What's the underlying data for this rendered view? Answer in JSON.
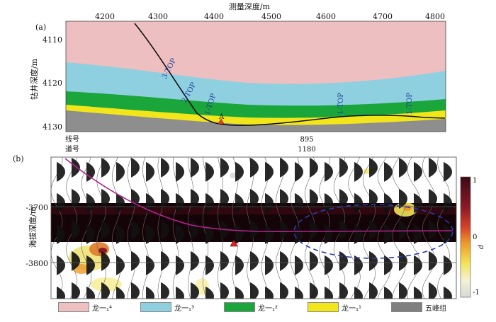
{
  "panel_a": {
    "label": "(a)",
    "top_axis_title": "测量深度/m",
    "top_ticks": [
      "4200",
      "4300",
      "4400",
      "4500",
      "4600",
      "4700",
      "4800"
    ],
    "left_axis_title": "钻井深度/m",
    "left_ticks": [
      "4110",
      "4120",
      "4130"
    ],
    "marker_label": "A",
    "curve_labels": [
      "3-TOP",
      "2-TOP",
      "1-TOP",
      "1-TOP",
      "1-TOP"
    ],
    "line_label": "线号",
    "trace_label": "道号",
    "line_number": "895",
    "trace_number": "1180",
    "layer_colors": {
      "l4": "#edbfc0",
      "l3": "#8fd0e0",
      "l2": "#1aa63a",
      "l1": "#f2e61a",
      "base": "#8e8e8e"
    }
  },
  "panel_b": {
    "label": "(b)",
    "left_axis_title": "海拔深度/m",
    "left_ticks": [
      "-3700",
      "-3800"
    ],
    "colorbar": {
      "max_label": "1",
      "mid_label": "0",
      "min_label": "-1",
      "title": "d"
    }
  },
  "legend": [
    {
      "label": "龙一₁⁴",
      "color": "#edbfc0"
    },
    {
      "label": "龙一₁³",
      "color": "#8fd0e0"
    },
    {
      "label": "龙一₁²",
      "color": "#1aa63a"
    },
    {
      "label": "龙一₁¹",
      "color": "#f2e61a"
    },
    {
      "label": "五峰组",
      "color": "#7f7f7f"
    }
  ]
}
